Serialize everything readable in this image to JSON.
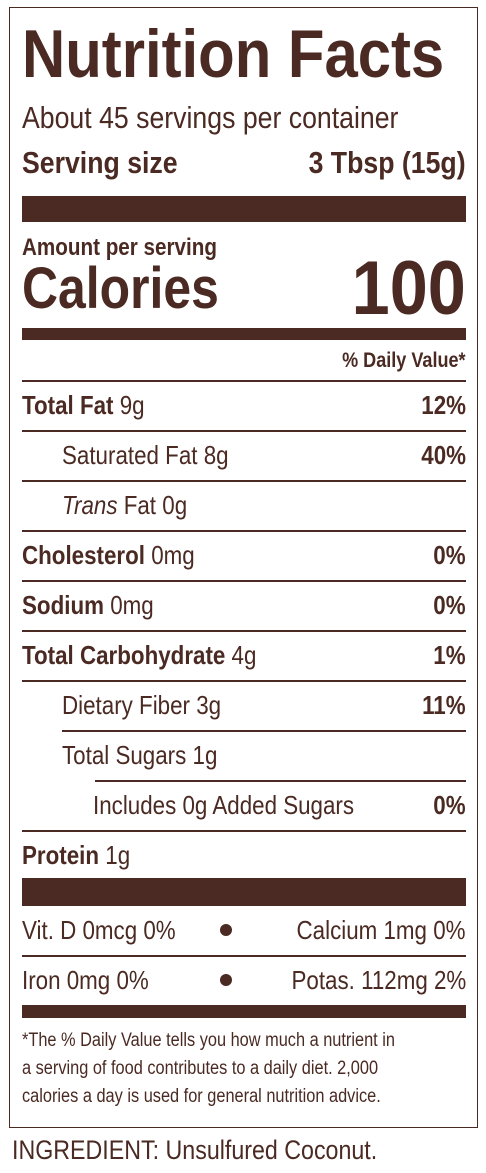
{
  "title": "Nutrition Facts",
  "servings": "About 45 servings per container",
  "serving_size": {
    "label": "Serving size",
    "value": "3 Tbsp (15g)"
  },
  "amount_per_serving": "Amount per serving",
  "calories": {
    "label": "Calories",
    "value": "100"
  },
  "daily_value_header": "% Daily Value*",
  "nutrients": [
    {
      "name": "Total Fat",
      "amount": "9g",
      "dv": "12%"
    },
    {
      "name": "Saturated Fat",
      "amount": "8g",
      "dv": "40%"
    },
    {
      "name": "Trans",
      "rest": "Fat",
      "amount": "0g"
    },
    {
      "name": "Cholesterol",
      "amount": "0mg",
      "dv": "0%"
    },
    {
      "name": "Sodium",
      "amount": "0mg",
      "dv": "0%"
    },
    {
      "name": "Total Carbohydrate",
      "amount": "4g",
      "dv": "1%"
    },
    {
      "name": "Dietary Fiber",
      "amount": "3g",
      "dv": "11%"
    },
    {
      "name": "Total Sugars",
      "amount": "1g"
    },
    {
      "name": "Includes 0g Added Sugars",
      "dv": "0%"
    },
    {
      "name": "Protein",
      "amount": "1g"
    }
  ],
  "vitamins": [
    [
      "Vit. D 0mcg 0%",
      "Calcium 1mg 0%"
    ],
    [
      "Iron 0mg 0%",
      "Potas. 112mg 2%"
    ]
  ],
  "footnote": [
    "*The % Daily Value tells you how much a nutrient in",
    "a serving of food contributes to a daily diet. 2,000",
    "calories a day is used for general nutrition advice."
  ],
  "ingredients": "INGREDIENT: Unsulfured Coconut."
}
